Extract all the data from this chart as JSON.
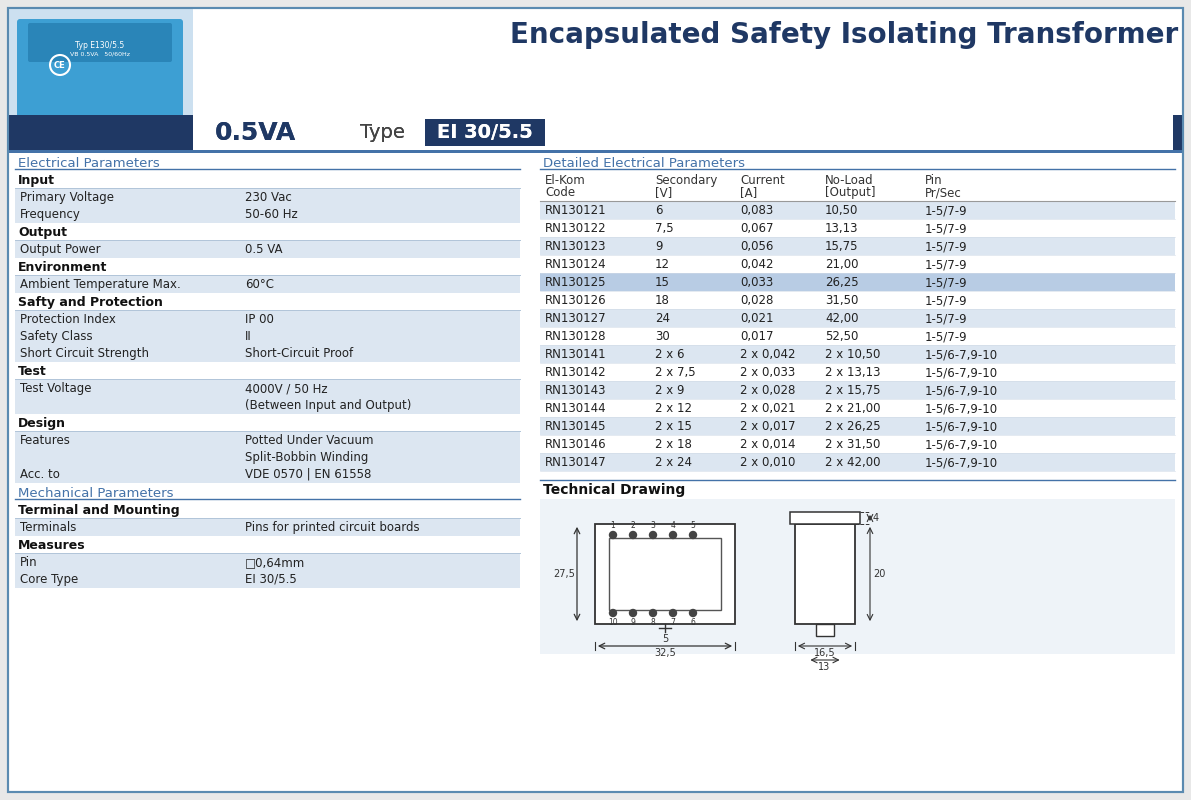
{
  "title": "Encapsulated Safety Isolating Transformer",
  "power": "0.5VA",
  "type_label": "Type",
  "type_value": "EI 30/5.5",
  "dark_blue": "#1f3864",
  "mid_blue": "#2e5090",
  "section_color": "#4472a8",
  "row_alt_color": "#dce6f1",
  "row_white": "#ffffff",
  "highlighted_row_color": "#b8cce4",
  "elec_section_title": "Electrical Parameters",
  "elec_params": [
    {
      "section": "Input"
    },
    {
      "label": "Primary Voltage",
      "value": "230 Vac",
      "alt": true
    },
    {
      "label": "Frequency",
      "value": "50-60 Hz",
      "alt": true
    },
    {
      "section": "Output"
    },
    {
      "label": "Output Power",
      "value": "0.5 VA",
      "alt": true
    },
    {
      "section": "Environment"
    },
    {
      "label": "Ambient Temperature Max.",
      "value": "60°C",
      "alt": true
    },
    {
      "section": "Safty and Protection"
    },
    {
      "label": "Protection Index",
      "value": "IP 00",
      "alt": true
    },
    {
      "label": "Safety Class",
      "value": "II",
      "alt": true
    },
    {
      "label": "Short Circuit Strength",
      "value": "Short-Circuit Proof",
      "alt": true
    },
    {
      "section": "Test"
    },
    {
      "label": "Test Voltage",
      "value": "4000V / 50 Hz\n(Between Input and Output)",
      "alt": true
    },
    {
      "section": "Design"
    },
    {
      "label": "Features",
      "value": "Potted Under Vacuum\nSplit-Bobbin Winding",
      "alt": true
    },
    {
      "label": "Acc. to",
      "value": "VDE 0570 | EN 61558",
      "alt": true
    }
  ],
  "mech_section_title": "Mechanical Parameters",
  "mech_params": [
    {
      "section": "Terminal and Mounting"
    },
    {
      "label": "Terminals",
      "value": "Pins for printed circuit boards",
      "alt": true
    },
    {
      "section": "Measures"
    },
    {
      "label": "Pin",
      "value": "□0,64mm",
      "alt": true
    },
    {
      "label": "Core Type",
      "value": "EI 30/5.5",
      "alt": true
    }
  ],
  "detailed_section_title": "Detailed Electrical Parameters",
  "table_headers": [
    "El-Kom\nCode",
    "Secondary\n[V]",
    "Current\n[A]",
    "No-Load\n[Output]",
    "Pin\nPr/Sec"
  ],
  "table_col_widths": [
    110,
    85,
    85,
    100,
    110
  ],
  "table_rows": [
    [
      "RN130121",
      "6",
      "0,083",
      "10,50",
      "1-5/7-9"
    ],
    [
      "RN130122",
      "7,5",
      "0,067",
      "13,13",
      "1-5/7-9"
    ],
    [
      "RN130123",
      "9",
      "0,056",
      "15,75",
      "1-5/7-9"
    ],
    [
      "RN130124",
      "12",
      "0,042",
      "21,00",
      "1-5/7-9"
    ],
    [
      "RN130125",
      "15",
      "0,033",
      "26,25",
      "1-5/7-9"
    ],
    [
      "RN130126",
      "18",
      "0,028",
      "31,50",
      "1-5/7-9"
    ],
    [
      "RN130127",
      "24",
      "0,021",
      "42,00",
      "1-5/7-9"
    ],
    [
      "RN130128",
      "30",
      "0,017",
      "52,50",
      "1-5/7-9"
    ],
    [
      "RN130141",
      "2 x 6",
      "2 x 0,042",
      "2 x 10,50",
      "1-5/6-7,9-10"
    ],
    [
      "RN130142",
      "2 x 7,5",
      "2 x 0,033",
      "2 x 13,13",
      "1-5/6-7,9-10"
    ],
    [
      "RN130143",
      "2 x 9",
      "2 x 0,028",
      "2 x 15,75",
      "1-5/6-7,9-10"
    ],
    [
      "RN130144",
      "2 x 12",
      "2 x 0,021",
      "2 x 21,00",
      "1-5/6-7,9-10"
    ],
    [
      "RN130145",
      "2 x 15",
      "2 x 0,017",
      "2 x 26,25",
      "1-5/6-7,9-10"
    ],
    [
      "RN130146",
      "2 x 18",
      "2 x 0,014",
      "2 x 31,50",
      "1-5/6-7,9-10"
    ],
    [
      "RN130147",
      "2 x 24",
      "2 x 0,010",
      "2 x 42,00",
      "1-5/6-7,9-10"
    ]
  ],
  "highlighted_row": 4,
  "tech_drawing_title": "Technical Drawing",
  "outer_border": "#5a8ab0"
}
